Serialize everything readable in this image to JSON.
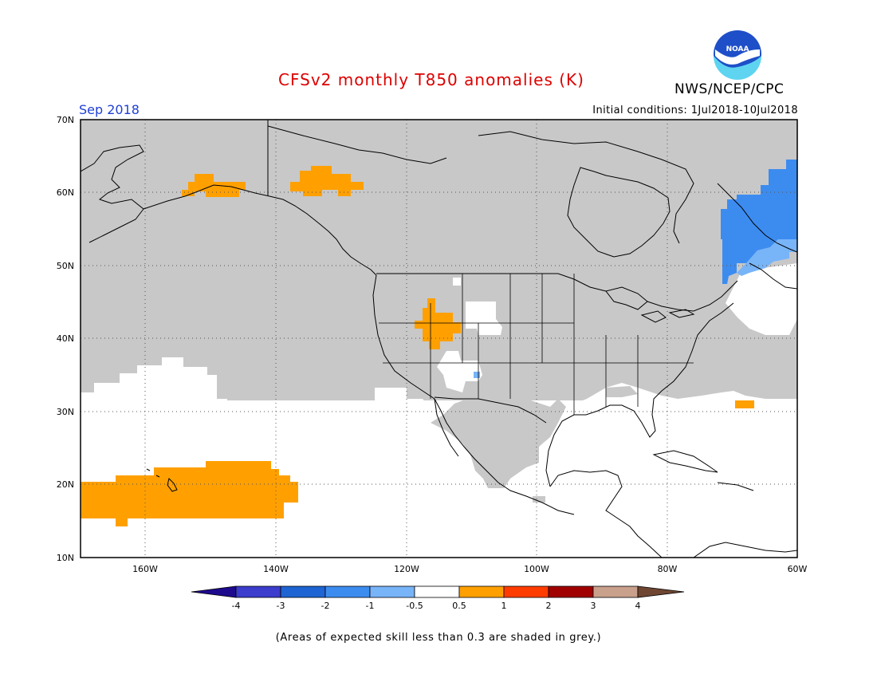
{
  "header": {
    "title": "CFSv2 monthly T850 anomalies (K)",
    "title_color": "#dd0000",
    "agency": "NWS/NCEP/CPC",
    "logo_text": "NOAA",
    "valid_month": "Sep 2018",
    "valid_month_color": "#1f3fd6",
    "initial_conditions": "Initial conditions: 1Jul2018-10Jul2018"
  },
  "map": {
    "lon_range": [
      -172,
      -60
    ],
    "lat_range": [
      10,
      70
    ],
    "lat_labels": [
      "10N",
      "20N",
      "30N",
      "40N",
      "50N",
      "60N",
      "70N"
    ],
    "lon_labels": [
      "160W",
      "140W",
      "120W",
      "100W",
      "80W",
      "60W"
    ],
    "grid": "dotted",
    "skill_mask_color": "#c8c8c8",
    "anomaly_regions": [
      {
        "region": "Hawaii / central Pacific",
        "category": "0.5 to 1",
        "color": "#ffa000"
      },
      {
        "region": "Southern Alaska",
        "category": "0.5 to 1",
        "color": "#ffa000"
      },
      {
        "region": "Gulf of Alaska coast",
        "category": "0.5 to 1",
        "color": "#ffa000"
      },
      {
        "region": "Great Basin (Nevada/Idaho/Utah)",
        "category": "0.5 to 1",
        "color": "#ffa000"
      },
      {
        "region": "Western Atlantic near 31N",
        "category": "0.5 to 1",
        "color": "#ffa000"
      },
      {
        "region": "Labrador / Quebec",
        "category": "-2 to -1",
        "color": "#3c8cf0"
      },
      {
        "region": "Newfoundland / Gulf of St. Lawrence",
        "category": "-1 to -0.5",
        "color": "#78b4f8"
      }
    ]
  },
  "colorbar": {
    "labels": [
      "-4",
      "-3",
      "-2",
      "-1",
      "-0.5",
      "0.5",
      "1",
      "2",
      "3",
      "4"
    ],
    "colors": [
      "#1e0a8c",
      "#3c3ccd",
      "#1e64d2",
      "#3c8cf0",
      "#78b4f8",
      "#ffffff",
      "#ffa000",
      "#ff3c00",
      "#a00000",
      "#c8a08c",
      "#6e4632"
    ]
  },
  "footnote": "(Areas of expected skill less than 0.3 are shaded in grey.)"
}
